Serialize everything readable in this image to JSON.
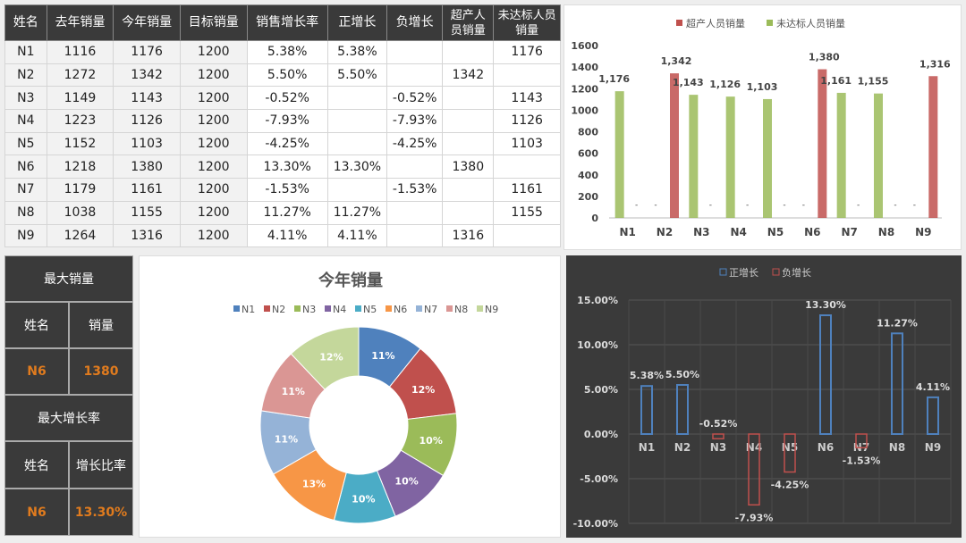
{
  "table": {
    "headers": [
      "姓名",
      "去年销量",
      "今年销量",
      "目标销量",
      "销售增长率",
      "正增长",
      "负增长",
      "超产人员销量",
      "未达标人员销量"
    ],
    "rows": [
      [
        "N1",
        "1116",
        "1176",
        "1200",
        "5.38%",
        "5.38%",
        "",
        "",
        "1176"
      ],
      [
        "N2",
        "1272",
        "1342",
        "1200",
        "5.50%",
        "5.50%",
        "",
        "1342",
        ""
      ],
      [
        "N3",
        "1149",
        "1143",
        "1200",
        "-0.52%",
        "",
        "-0.52%",
        "",
        "1143"
      ],
      [
        "N4",
        "1223",
        "1126",
        "1200",
        "-7.93%",
        "",
        "-7.93%",
        "",
        "1126"
      ],
      [
        "N5",
        "1152",
        "1103",
        "1200",
        "-4.25%",
        "",
        "-4.25%",
        "",
        "1103"
      ],
      [
        "N6",
        "1218",
        "1380",
        "1200",
        "13.30%",
        "13.30%",
        "",
        "1380",
        ""
      ],
      [
        "N7",
        "1179",
        "1161",
        "1200",
        "-1.53%",
        "",
        "-1.53%",
        "",
        "1161"
      ],
      [
        "N8",
        "1038",
        "1155",
        "1200",
        "11.27%",
        "11.27%",
        "",
        "",
        "1155"
      ],
      [
        "N9",
        "1264",
        "1316",
        "1200",
        "4.11%",
        "4.11%",
        "",
        "1316",
        ""
      ]
    ]
  },
  "summary": {
    "max_sales_title": "最大销量",
    "name_label": "姓名",
    "sales_label": "销量",
    "max_sales_name": "N6",
    "max_sales_value": "1380",
    "max_growth_title": "最大增长率",
    "growth_label": "增长比率",
    "max_growth_name": "N6",
    "max_growth_value": "13.30%"
  },
  "chart_data": [
    {
      "type": "bar",
      "title": "",
      "categories": [
        "N1",
        "N2",
        "N3",
        "N4",
        "N5",
        "N6",
        "N7",
        "N8",
        "N9"
      ],
      "series": [
        {
          "name": "超产人员销量",
          "color": "#c0504d",
          "values": [
            null,
            1342,
            null,
            null,
            null,
            1380,
            null,
            null,
            1316
          ]
        },
        {
          "name": "未达标人员销量",
          "color": "#9bbb59",
          "values": [
            1176,
            null,
            1143,
            1126,
            1103,
            null,
            1161,
            1155,
            null
          ]
        }
      ],
      "ylim": [
        0,
        1600
      ],
      "yticks": [
        0,
        200,
        400,
        600,
        800,
        1000,
        1200,
        1400,
        1600
      ],
      "legend": "top"
    },
    {
      "type": "pie",
      "title": "今年销量",
      "categories": [
        "N1",
        "N2",
        "N3",
        "N4",
        "N5",
        "N6",
        "N7",
        "N8",
        "N9"
      ],
      "values": [
        1176,
        1342,
        1143,
        1126,
        1103,
        1380,
        1161,
        1155,
        1316
      ],
      "labels": [
        "11%",
        "12%",
        "10%",
        "10%",
        "10%",
        "13%",
        "11%",
        "11%",
        "12%"
      ],
      "colors": [
        "#4f81bd",
        "#c0504d",
        "#9bbb59",
        "#8064a2",
        "#4bacc6",
        "#f79646",
        "#95b3d7",
        "#da9694",
        "#c4d79b"
      ],
      "donut": true
    },
    {
      "type": "bar",
      "title": "",
      "categories": [
        "N1",
        "N2",
        "N3",
        "N4",
        "N5",
        "N6",
        "N7",
        "N8",
        "N9"
      ],
      "series": [
        {
          "name": "正增长",
          "color": "#4f81bd",
          "values": [
            5.38,
            5.5,
            null,
            null,
            null,
            13.3,
            null,
            11.27,
            4.11
          ]
        },
        {
          "name": "负增长",
          "color": "#c0504d",
          "values": [
            null,
            null,
            -0.52,
            -7.93,
            -4.25,
            null,
            -1.53,
            null,
            null
          ]
        }
      ],
      "labels": [
        "5.38%",
        "5.50%",
        "-0.52%",
        "-7.93%",
        "-4.25%",
        "13.30%",
        "-1.53%",
        "11.27%",
        "4.11%"
      ],
      "ylim": [
        -10,
        15
      ],
      "yticks": [
        "15.00%",
        "10.00%",
        "5.00%",
        "0.00%",
        "-5.00%",
        "-10.00%"
      ],
      "legend": "top"
    }
  ]
}
